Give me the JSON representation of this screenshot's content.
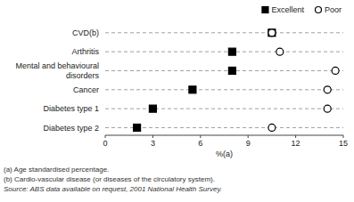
{
  "chart_data": {
    "type": "dot",
    "orientation": "horizontal",
    "categories": [
      "CVD(b)",
      "Arthritis",
      "Mental and behavioural\ndisorders",
      "Cancer",
      "Diabetes type 1",
      "Diabetes type 2"
    ],
    "series": [
      {
        "name": "Excellent",
        "color": "black",
        "marker": "square",
        "values": [
          10.5,
          8.0,
          8.0,
          5.5,
          3.0,
          2.0
        ]
      },
      {
        "name": "Poor",
        "color": "black",
        "marker": "circle-open",
        "values": [
          10.5,
          11.0,
          14.5,
          14.0,
          14.0,
          10.5
        ]
      }
    ],
    "xlabel": "%(a)",
    "xlim": [
      0,
      15
    ],
    "xticks": [
      0,
      3,
      6,
      9,
      12,
      15
    ],
    "grid": true,
    "legend": "upper right",
    "annotations": [
      "(a) Age standardised percentage.",
      "(b) Cardio-vascular disease (or diseases of the circulatory system).",
      "Source: ABS data available on request, 2001 National Health Survey."
    ]
  }
}
